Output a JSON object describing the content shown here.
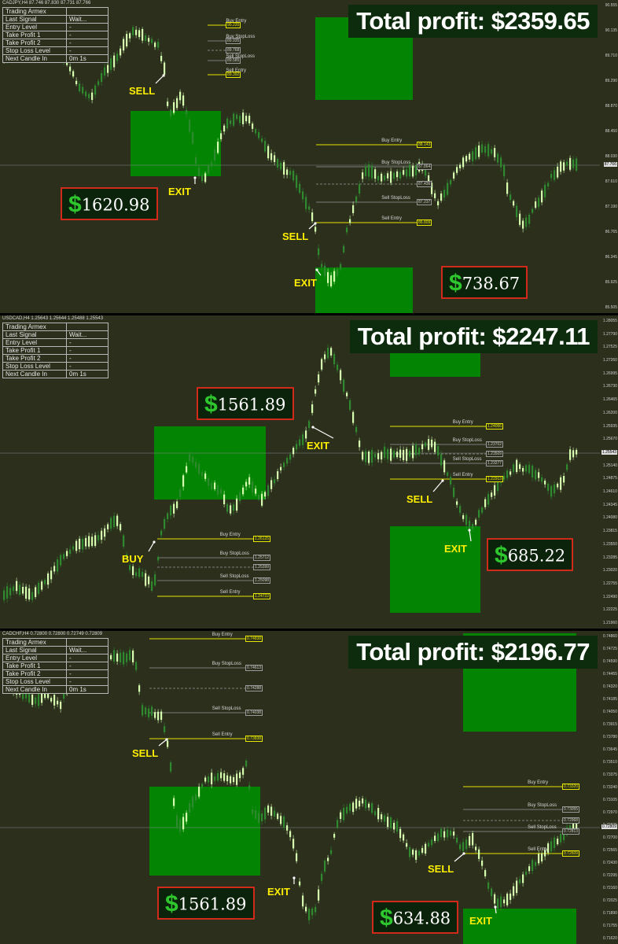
{
  "colors": {
    "bg": "#2b2f1c",
    "bull": "#d6ffb0",
    "bear": "#2f8a2f",
    "zone": "#008c00",
    "level_yellow": "#e6e600",
    "level_gray": "#9a9a9a",
    "profit_border": "#d12a1a",
    "signal": "#ffef00",
    "dollar": "#2ec82e"
  },
  "info_labels": [
    "Trading Armex",
    "Last Signal",
    "Entry Level",
    "Take Profit 1",
    "Take Profit 2",
    "Stop Loss Level",
    "Next Candle In"
  ],
  "panels": [
    {
      "symbol_line": "CADJPY,H4  87.746 87.830 87.731 87.766",
      "info_values": [
        "",
        "Wait...",
        "-",
        "-",
        "-",
        "-",
        "0m 1s"
      ],
      "total_label": "Total profit: $2359.65",
      "profits": [
        {
          "amount": "1620.98",
          "dollar": "$"
        },
        {
          "amount": "738.67",
          "dollar": "$"
        }
      ],
      "signals": [
        "SELL",
        "EXIT",
        "SELL",
        "EXIT"
      ],
      "levels": [
        {
          "label": "Buy Entry",
          "price": "90.220"
        },
        {
          "label": "Buy StopLoss",
          "price": "89.935"
        },
        {
          "label": "",
          "price": "89.768"
        },
        {
          "label": "Sell StopLoss",
          "price": "89.585"
        },
        {
          "label": "Sell Entry",
          "price": "89.392"
        },
        {
          "label": "Buy Entry",
          "price": "88.143"
        },
        {
          "label": "Buy StopLoss",
          "price": "87.864"
        },
        {
          "label": "",
          "price": "87.436"
        },
        {
          "label": "Sell StopLoss",
          "price": "87.237"
        },
        {
          "label": "Sell Entry",
          "price": "86.809"
        }
      ],
      "axis_prices": [
        "90.555",
        "90.135",
        "89.710",
        "89.290",
        "88.870",
        "88.450",
        "88.030",
        "87.610",
        "87.190",
        "86.765",
        "86.345",
        "85.925",
        "85.505"
      ],
      "current_price": "87.766"
    },
    {
      "symbol_line": "USDCAD,H4  1.25643 1.25644 1.25488 1.25543",
      "info_values": [
        "",
        "Wait...",
        "-",
        "-",
        "-",
        "-",
        "0m 1s"
      ],
      "total_label": "Total profit: $2247.11",
      "profits": [
        {
          "amount": "1561.89",
          "dollar": "$"
        },
        {
          "amount": "685.22",
          "dollar": "$"
        }
      ],
      "signals": [
        "EXIT",
        "BUY",
        "SELL",
        "EXIT"
      ],
      "levels": [
        {
          "label": "Buy Entry",
          "price": "1.26125"
        },
        {
          "label": "Buy StopLoss",
          "price": "1.25712"
        },
        {
          "label": "",
          "price": "1.25399"
        },
        {
          "label": "Sell StopLoss",
          "price": "1.25098"
        },
        {
          "label": "Sell Entry",
          "price": "1.24722"
        },
        {
          "label": "Buy Entry",
          "price": "1.24066"
        },
        {
          "label": "Buy StopLoss",
          "price": "1.23702"
        },
        {
          "label": "",
          "price": "1.23509"
        },
        {
          "label": "Sell StopLoss",
          "price": "1.23277"
        },
        {
          "label": "Sell Entry",
          "price": "1.22913"
        }
      ],
      "axis_prices": [
        "1.28055",
        "1.27790",
        "1.27525",
        "1.27260",
        "1.26995",
        "1.26730",
        "1.26465",
        "1.26200",
        "1.25935",
        "1.25670",
        "1.25405",
        "1.25140",
        "1.24875",
        "1.24610",
        "1.24345",
        "1.24080",
        "1.23815",
        "1.23550",
        "1.23285",
        "1.23020",
        "1.22755",
        "1.22490",
        "1.22225",
        "1.21960"
      ],
      "current_price": "1.25543"
    },
    {
      "symbol_line": "CADCHF,H4  0.72800 0.72800 0.72749 0.72809",
      "info_values": [
        "",
        "Wait...",
        "-",
        "-",
        "-",
        "-",
        "0m 1s"
      ],
      "total_label": "Total profit: $2196.77",
      "profits": [
        {
          "amount": "1561.89",
          "dollar": "$"
        },
        {
          "amount": "634.88",
          "dollar": "$"
        }
      ],
      "signals": [
        "SELL",
        "EXIT",
        "SELL",
        "EXIT"
      ],
      "levels": [
        {
          "label": "Buy Entry",
          "price": "0.74838"
        },
        {
          "label": "Buy StopLoss",
          "price": "0.74613"
        },
        {
          "label": "",
          "price": "0.74288"
        },
        {
          "label": "Sell StopLoss",
          "price": "0.74038"
        },
        {
          "label": "Sell Entry",
          "price": "0.73838"
        },
        {
          "label": "Buy Entry",
          "price": "0.73320"
        },
        {
          "label": "Buy StopLoss",
          "price": "0.73055"
        },
        {
          "label": "",
          "price": "0.72968"
        },
        {
          "label": "Sell StopLoss",
          "price": "0.72813"
        },
        {
          "label": "Sell Entry",
          "price": "0.72609"
        }
      ],
      "axis_prices": [
        "0.74860",
        "0.74725",
        "0.74590",
        "0.74455",
        "0.74320",
        "0.74185",
        "0.74050",
        "0.73915",
        "0.73780",
        "0.73645",
        "0.73510",
        "0.73375",
        "0.73240",
        "0.73105",
        "0.72970",
        "0.72835",
        "0.72700",
        "0.72565",
        "0.72430",
        "0.72295",
        "0.72160",
        "0.72025",
        "0.71890",
        "0.71755",
        "0.71620"
      ],
      "current_price": "0.72809"
    }
  ]
}
